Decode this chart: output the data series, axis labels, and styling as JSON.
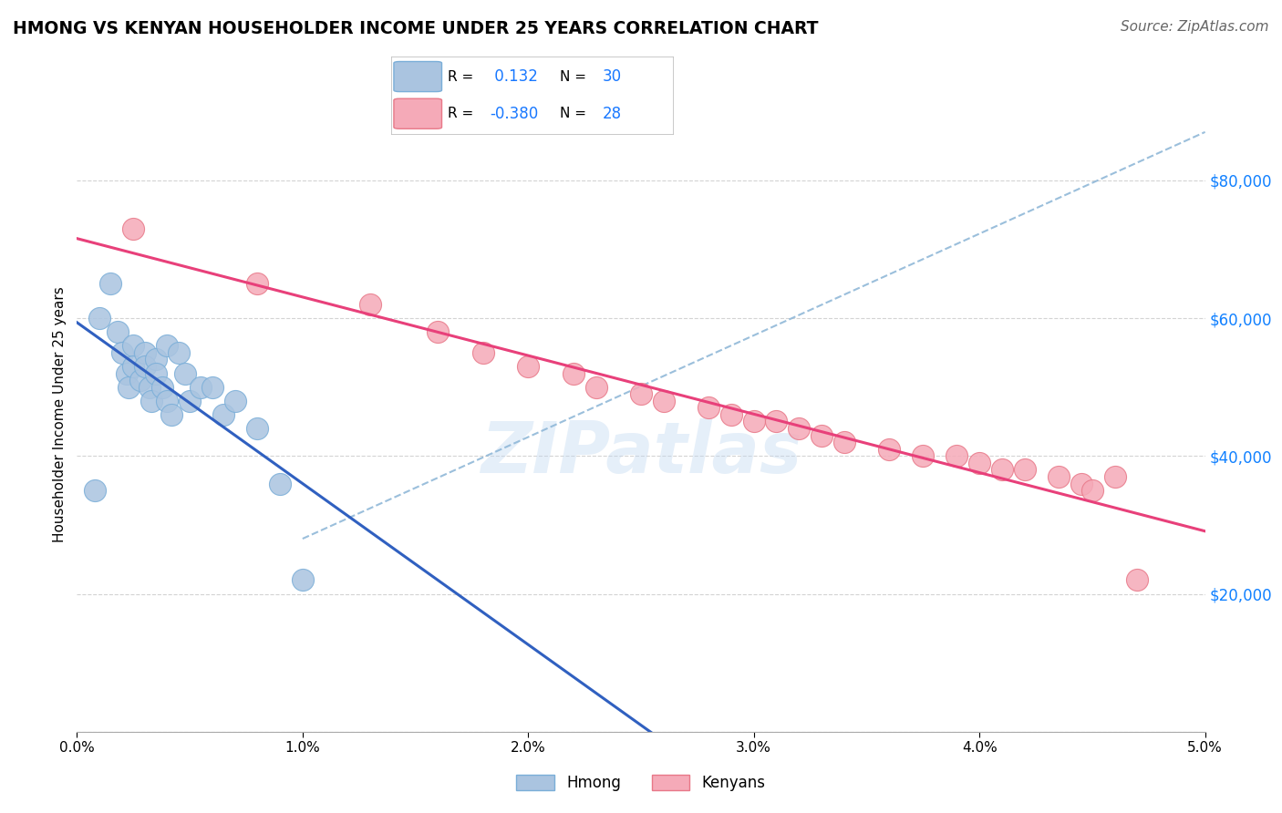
{
  "title": "HMONG VS KENYAN HOUSEHOLDER INCOME UNDER 25 YEARS CORRELATION CHART",
  "source_text": "Source: ZipAtlas.com",
  "ylabel": "Householder Income Under 25 years",
  "xlim": [
    0.0,
    0.05
  ],
  "ylim": [
    0,
    92000
  ],
  "yticks": [
    0,
    20000,
    40000,
    60000,
    80000
  ],
  "xticks": [
    0.0,
    0.01,
    0.02,
    0.03,
    0.04,
    0.05
  ],
  "hmong_x": [
    0.0008,
    0.001,
    0.0015,
    0.0018,
    0.002,
    0.0022,
    0.0023,
    0.0025,
    0.0025,
    0.0028,
    0.003,
    0.003,
    0.0032,
    0.0033,
    0.0035,
    0.0035,
    0.0038,
    0.004,
    0.004,
    0.0042,
    0.0045,
    0.0048,
    0.005,
    0.0055,
    0.006,
    0.0065,
    0.007,
    0.008,
    0.009,
    0.01
  ],
  "hmong_y": [
    35000,
    60000,
    65000,
    58000,
    55000,
    52000,
    50000,
    56000,
    53000,
    51000,
    55000,
    53000,
    50000,
    48000,
    54000,
    52000,
    50000,
    56000,
    48000,
    46000,
    55000,
    52000,
    48000,
    50000,
    50000,
    46000,
    48000,
    44000,
    36000,
    22000
  ],
  "kenyan_x": [
    0.0025,
    0.008,
    0.013,
    0.016,
    0.018,
    0.02,
    0.022,
    0.023,
    0.025,
    0.026,
    0.028,
    0.029,
    0.03,
    0.031,
    0.032,
    0.033,
    0.034,
    0.036,
    0.0375,
    0.039,
    0.04,
    0.041,
    0.042,
    0.0435,
    0.0445,
    0.045,
    0.046,
    0.047
  ],
  "kenyan_y": [
    73000,
    65000,
    62000,
    58000,
    55000,
    53000,
    52000,
    50000,
    49000,
    48000,
    47000,
    46000,
    45000,
    45000,
    44000,
    43000,
    42000,
    41000,
    40000,
    40000,
    39000,
    38000,
    38000,
    37000,
    36000,
    35000,
    37000,
    22000
  ],
  "hmong_color": "#aac4e0",
  "kenyan_color": "#f5aab8",
  "hmong_edge_color": "#7aaed8",
  "kenyan_edge_color": "#e87888",
  "trend_hmong_color": "#3060c0",
  "trend_kenyan_color": "#e8407a",
  "dashed_line_color": "#90b8d8",
  "R_hmong": 0.132,
  "N_hmong": 30,
  "R_kenyan": -0.38,
  "N_kenyan": 28,
  "legend_label_hmong": "Hmong",
  "legend_label_kenyan": "Kenyans",
  "watermark": "ZIPatlas",
  "background_color": "#ffffff",
  "grid_color": "#c8c8c8",
  "ytick_color": "#1080ff",
  "source_color": "#666666"
}
